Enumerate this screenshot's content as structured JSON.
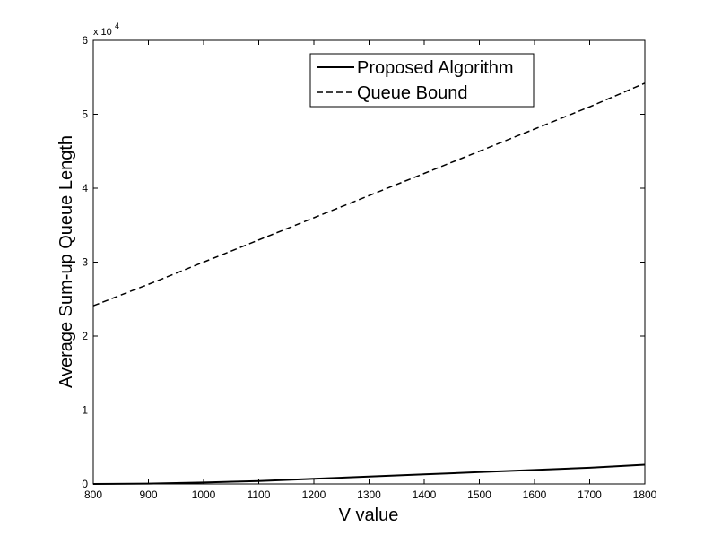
{
  "chart_data": {
    "type": "line",
    "xlabel": "V value",
    "ylabel": "Average Sum-up Queue Length",
    "xlim": [
      800,
      1800
    ],
    "ylim": [
      0,
      60000
    ],
    "x_ticks": [
      "800",
      "900",
      "1000",
      "1100",
      "1200",
      "1300",
      "1400",
      "1500",
      "1600",
      "1700",
      "1800"
    ],
    "y_ticks": [
      "0",
      "1",
      "2",
      "3",
      "4",
      "5",
      "6"
    ],
    "y_exponent_label": {
      "base": "x 10",
      "power": "4"
    },
    "grid": false,
    "legend_position": "top-right",
    "series": [
      {
        "name": "Proposed Algorithm",
        "style": "solid",
        "color": "#000000",
        "x": [
          800,
          900,
          1000,
          1100,
          1200,
          1300,
          1400,
          1500,
          1600,
          1700,
          1800
        ],
        "y": [
          0,
          50,
          200,
          400,
          700,
          1000,
          1300,
          1600,
          1900,
          2200,
          2600
        ]
      },
      {
        "name": "Queue Bound",
        "style": "dashed",
        "color": "#000000",
        "x": [
          800,
          900,
          1000,
          1100,
          1200,
          1300,
          1400,
          1500,
          1600,
          1700,
          1800
        ],
        "y": [
          24100,
          27000,
          30000,
          33000,
          36000,
          39000,
          42000,
          45000,
          48000,
          51000,
          54200
        ]
      }
    ]
  }
}
